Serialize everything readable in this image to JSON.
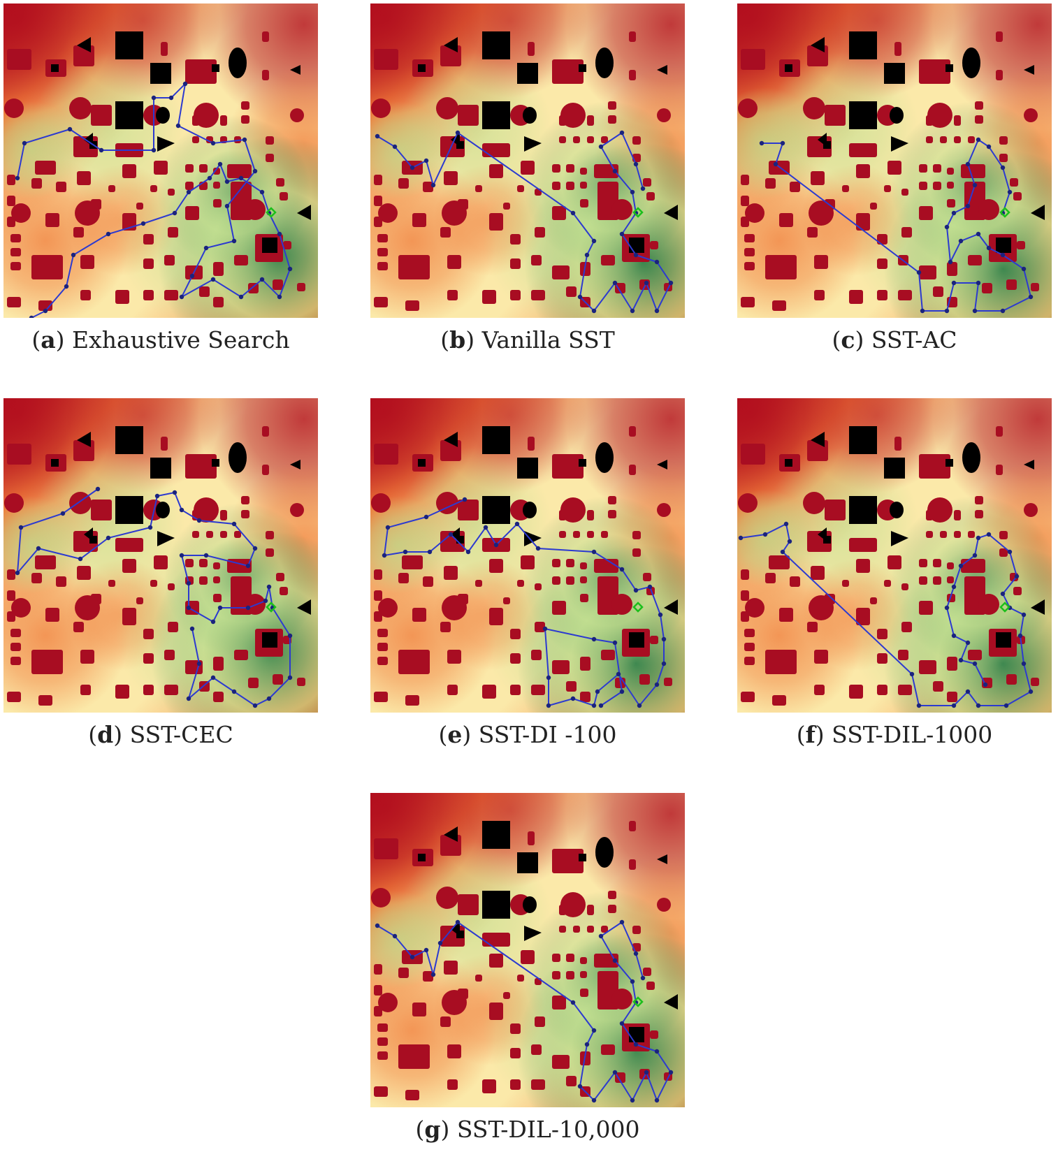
{
  "figure": {
    "panels": [
      {
        "id": "a",
        "letter": "a",
        "title": "Exhaustive Search"
      },
      {
        "id": "b",
        "letter": "b",
        "title": "Vanilla SST"
      },
      {
        "id": "c",
        "letter": "c",
        "title": "SST-AC"
      },
      {
        "id": "d",
        "letter": "d",
        "title": "SST-CEC"
      },
      {
        "id": "e",
        "letter": "e",
        "title": "SST-DI -100"
      },
      {
        "id": "f",
        "letter": "f",
        "title": "SST-DIL-1000"
      },
      {
        "id": "g",
        "letter": "g",
        "title": "SST-DIL-10,000"
      }
    ],
    "colors": {
      "hot": "#b20e1e",
      "warm": "#f07a3a",
      "mild": "#fbe9a9",
      "cool": "#b8dc8c",
      "coolest": "#0d6a3a",
      "building": "#a80d22",
      "obstacle": "#000000",
      "path": "#2c3ad0",
      "waypoint": "#1a237e",
      "target": "#1bbf1b"
    }
  }
}
